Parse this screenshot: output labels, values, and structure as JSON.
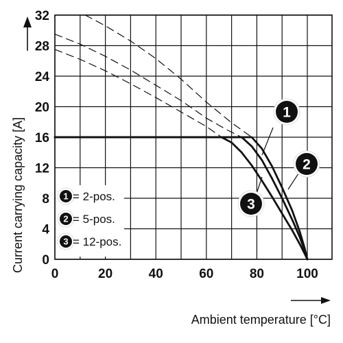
{
  "chart_data": {
    "type": "line",
    "xlabel": "Ambient temperature [°C]",
    "ylabel": "Current carrying capacity [A]",
    "xlim": [
      0,
      100
    ],
    "ylim": [
      0,
      32
    ],
    "x_ticks": [
      "0",
      "20",
      "40",
      "60",
      "80",
      "100"
    ],
    "y_ticks": [
      "0",
      "4",
      "8",
      "12",
      "16",
      "20",
      "24",
      "28",
      "32"
    ],
    "grid": true,
    "series": [
      {
        "badge": "1",
        "style": "solid",
        "points": [
          [
            0,
            16
          ],
          [
            10,
            16
          ],
          [
            20,
            16
          ],
          [
            30,
            16
          ],
          [
            40,
            16
          ],
          [
            50,
            16
          ],
          [
            60,
            16
          ],
          [
            70,
            16
          ],
          [
            78,
            16
          ],
          [
            82,
            14.5
          ],
          [
            86,
            12.2
          ],
          [
            90,
            9.4
          ],
          [
            94,
            6.4
          ],
          [
            97,
            3.6
          ],
          [
            99,
            1.4
          ],
          [
            100,
            0
          ]
        ]
      },
      {
        "badge": "2",
        "style": "solid",
        "points": [
          [
            0,
            16
          ],
          [
            10,
            16
          ],
          [
            20,
            16
          ],
          [
            30,
            16
          ],
          [
            40,
            16
          ],
          [
            50,
            16
          ],
          [
            60,
            16
          ],
          [
            70,
            16
          ],
          [
            74,
            16
          ],
          [
            78,
            14.8
          ],
          [
            82,
            13.0
          ],
          [
            86,
            10.6
          ],
          [
            90,
            8.0
          ],
          [
            94,
            5.2
          ],
          [
            97,
            2.9
          ],
          [
            99,
            1.1
          ],
          [
            100,
            0
          ]
        ]
      },
      {
        "badge": "3",
        "style": "solid",
        "points": [
          [
            0,
            16
          ],
          [
            10,
            16
          ],
          [
            20,
            16
          ],
          [
            30,
            16
          ],
          [
            40,
            16
          ],
          [
            50,
            16
          ],
          [
            60,
            16
          ],
          [
            66,
            16
          ],
          [
            70,
            15.3
          ],
          [
            74,
            14.0
          ],
          [
            78,
            12.3
          ],
          [
            82,
            10.3
          ],
          [
            86,
            8.2
          ],
          [
            90,
            6.0
          ],
          [
            94,
            3.8
          ],
          [
            97,
            2.0
          ],
          [
            99,
            0.7
          ],
          [
            100,
            0
          ]
        ]
      },
      {
        "badge": "1",
        "style": "dashed",
        "points": [
          [
            12,
            32
          ],
          [
            20,
            30.6
          ],
          [
            30,
            28.6
          ],
          [
            40,
            26.3
          ],
          [
            50,
            23.6
          ],
          [
            60,
            20.6
          ],
          [
            70,
            17.9
          ],
          [
            78,
            16
          ]
        ]
      },
      {
        "badge": "2",
        "style": "dashed",
        "points": [
          [
            0,
            29.5
          ],
          [
            10,
            28.2
          ],
          [
            20,
            26.6
          ],
          [
            30,
            24.8
          ],
          [
            40,
            22.8
          ],
          [
            50,
            20.8
          ],
          [
            60,
            18.5
          ],
          [
            68,
            17.0
          ],
          [
            74,
            16
          ]
        ]
      },
      {
        "badge": "3",
        "style": "dashed",
        "points": [
          [
            0,
            27.5
          ],
          [
            10,
            26.2
          ],
          [
            20,
            24.7
          ],
          [
            30,
            23.0
          ],
          [
            40,
            21.2
          ],
          [
            50,
            19.3
          ],
          [
            60,
            17.4
          ],
          [
            66,
            16
          ]
        ]
      }
    ],
    "legend": [
      {
        "badge": "1",
        "text": "= 2-pos."
      },
      {
        "badge": "2",
        "text": "= 5-pos."
      },
      {
        "badge": "3",
        "text": "= 12-pos."
      }
    ],
    "annotations": [
      {
        "badge": "1"
      },
      {
        "badge": "2"
      },
      {
        "badge": "3"
      }
    ]
  }
}
